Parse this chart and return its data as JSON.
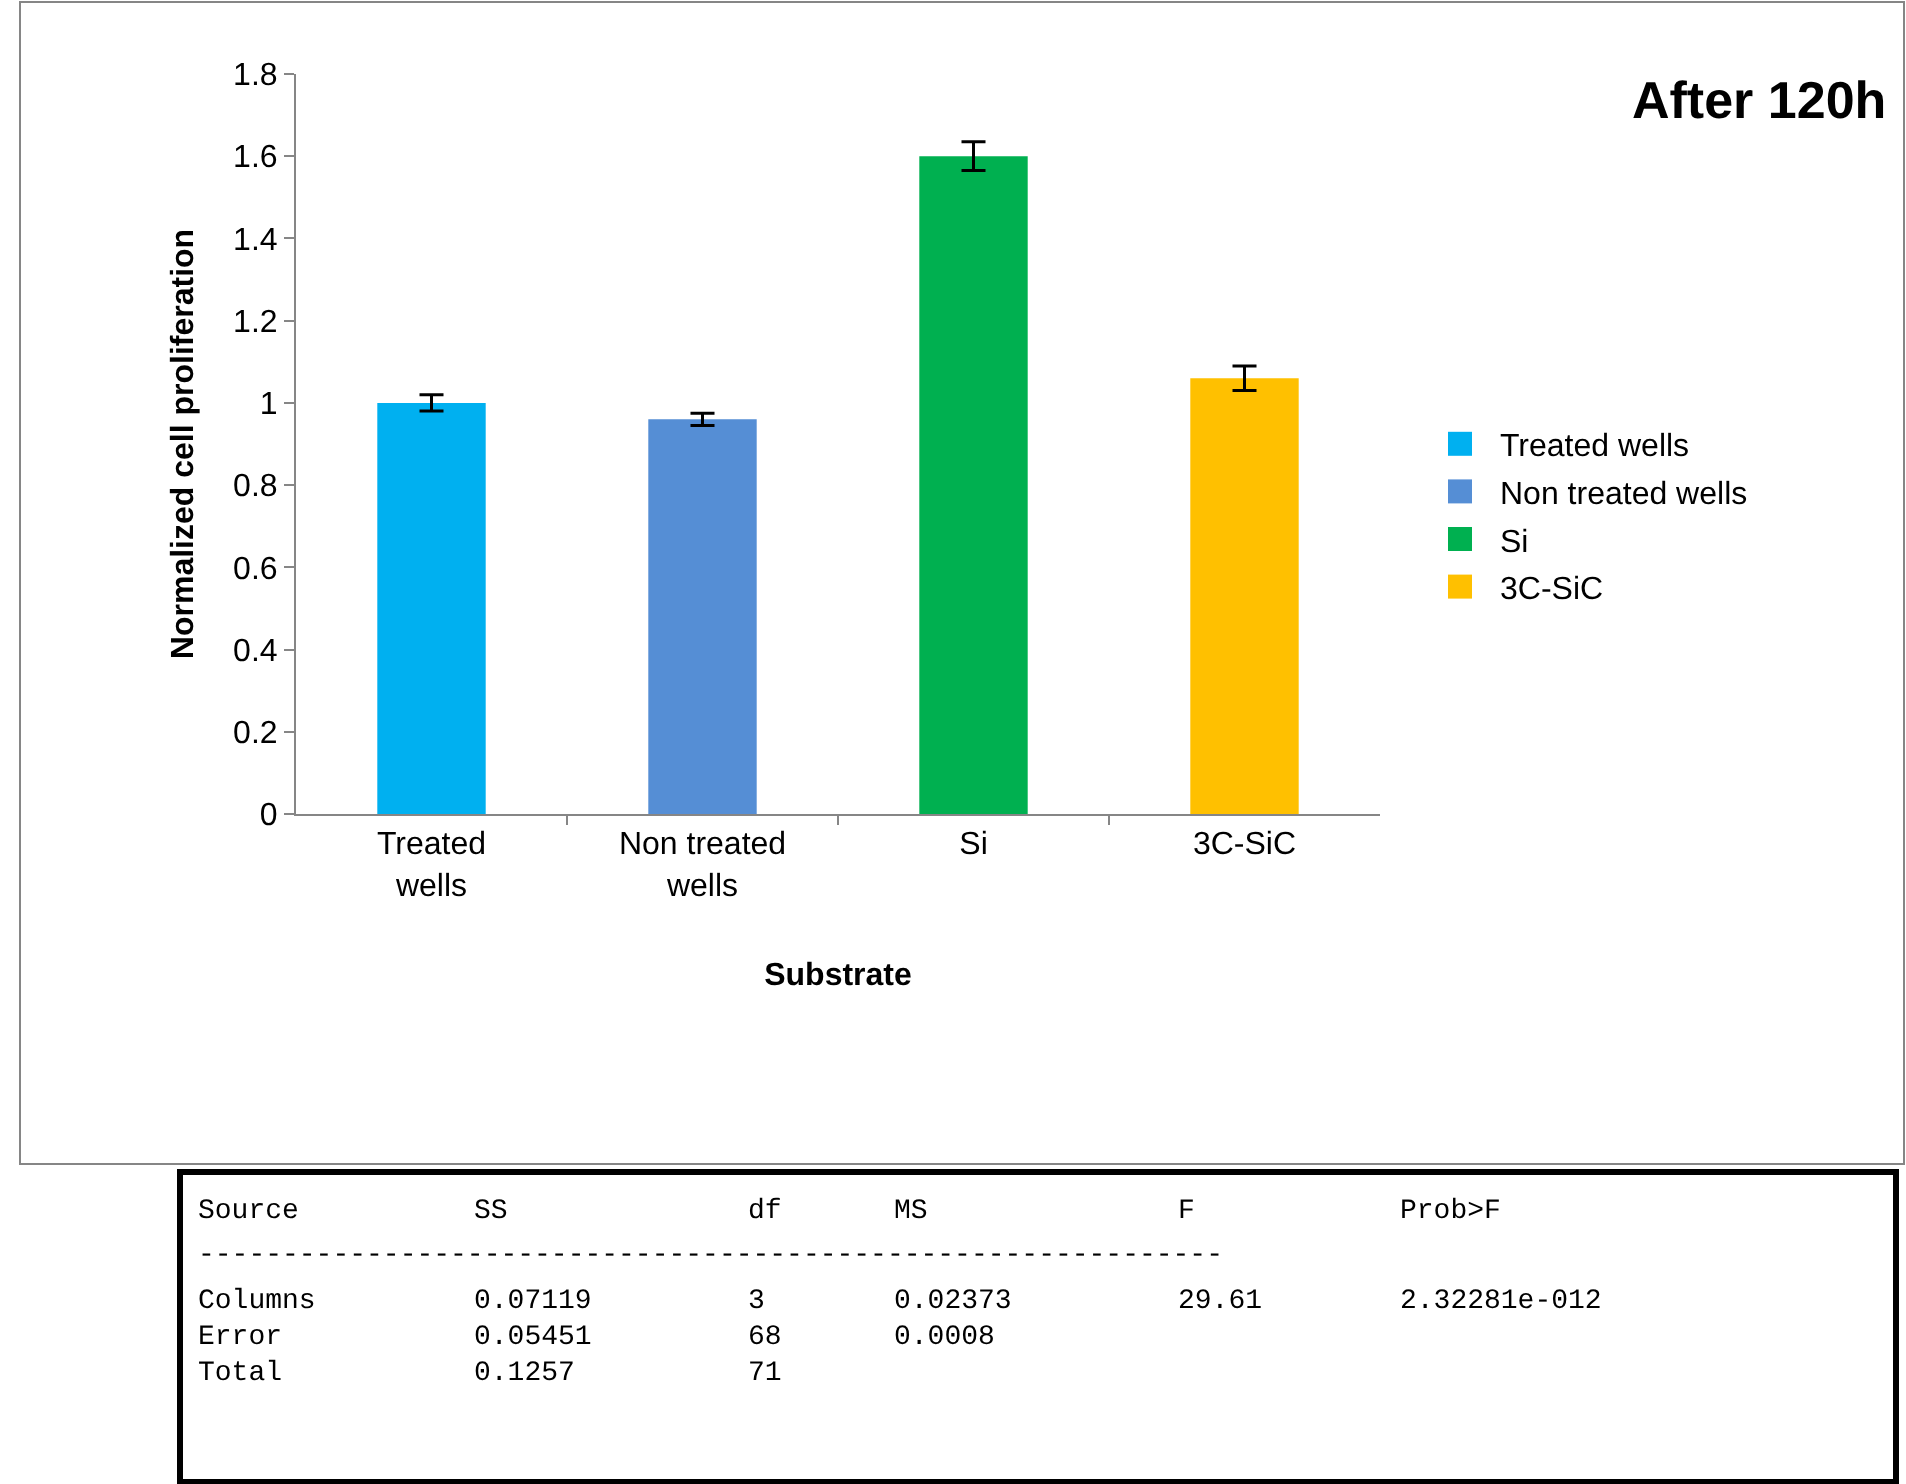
{
  "chart_data": {
    "type": "bar",
    "title": "After 120h",
    "xlabel": "Substrate",
    "ylabel": "Normalized cell proliferation",
    "categories": [
      "Treated wells",
      "Non treated wells",
      "Si",
      "3C-SiC"
    ],
    "series": [
      {
        "name": "Treated wells",
        "color": "#00b0f0",
        "values": [
          1.0,
          null,
          null,
          null
        ],
        "errors": [
          0.02,
          null,
          null,
          null
        ]
      },
      {
        "name": "Non treated wells",
        "color": "#558ed5",
        "values": [
          null,
          0.96,
          null,
          null
        ],
        "errors": [
          null,
          0.015,
          null,
          null
        ]
      },
      {
        "name": "Si",
        "color": "#00b050",
        "values": [
          null,
          null,
          1.6,
          null
        ],
        "errors": [
          null,
          null,
          0.035,
          null
        ]
      },
      {
        "name": "3C-SiC",
        "color": "#ffc000",
        "values": [
          null,
          null,
          null,
          1.06
        ],
        "errors": [
          null,
          null,
          null,
          0.03
        ]
      }
    ],
    "ylim": [
      0,
      1.8
    ],
    "yticks": [
      0,
      0.2,
      0.4,
      0.6,
      0.8,
      1,
      1.2,
      1.4,
      1.6,
      1.8
    ],
    "legend": "right",
    "annotations": [
      "Source    SS    df    MS    F    Prob>F",
      "-------------------------------------------------------------",
      "Columns    0.07119    3    0.02373    29.61    2.32281e-012",
      "Error    0.05451    68    0.0008",
      "Total    0.1257    71"
    ]
  }
}
